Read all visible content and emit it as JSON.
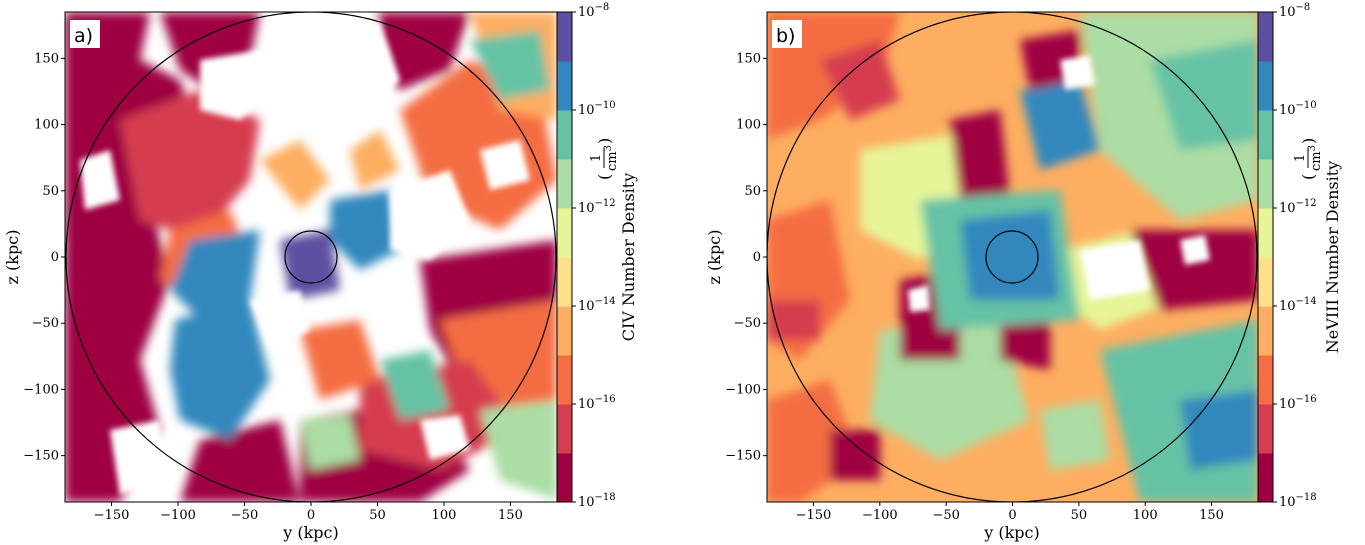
{
  "chart_data": [
    {
      "type": "heatmap",
      "panel_label": "a)",
      "xlabel": "y (kpc)",
      "ylabel": "z (kpc)",
      "xlim": [
        -185,
        185
      ],
      "ylim": [
        -185,
        185
      ],
      "xticks": [
        -150,
        -100,
        -50,
        0,
        50,
        100,
        150
      ],
      "yticks": [
        -150,
        -100,
        -50,
        0,
        50,
        100,
        150
      ],
      "colorbar": {
        "label": "CIV Number Density",
        "unit_numerator": "1",
        "unit_denominator": "cm",
        "unit_denominator_exp": "3",
        "scale": "log",
        "range": [
          1e-18,
          1e-08
        ],
        "tick_base": "10",
        "tick_exponents": [
          "−8",
          "−10",
          "−12",
          "−14",
          "−16",
          "−18"
        ],
        "colors": [
          "#9e0142",
          "#d53e4f",
          "#f46d43",
          "#fdae61",
          "#fee08b",
          "#e6f598",
          "#abdda4",
          "#66c2a5",
          "#3288bd",
          "#5e4fa2"
        ]
      },
      "annotations": [
        {
          "shape": "circle",
          "center": [
            0,
            0
          ],
          "radius": 185
        },
        {
          "shape": "circle",
          "center": [
            0,
            0
          ],
          "radius": 20
        }
      ]
    },
    {
      "type": "heatmap",
      "panel_label": "b)",
      "xlabel": "y (kpc)",
      "ylabel": "z (kpc)",
      "xlim": [
        -185,
        185
      ],
      "ylim": [
        -185,
        185
      ],
      "xticks": [
        -150,
        -100,
        -50,
        0,
        50,
        100,
        150
      ],
      "yticks": [
        -150,
        -100,
        -50,
        0,
        50,
        100,
        150
      ],
      "colorbar": {
        "label": "NeVIII Number Density",
        "unit_numerator": "1",
        "unit_denominator": "cm",
        "unit_denominator_exp": "3",
        "scale": "log",
        "range": [
          1e-18,
          1e-08
        ],
        "tick_base": "10",
        "tick_exponents": [
          "−8",
          "−10",
          "−12",
          "−14",
          "−16",
          "−18"
        ],
        "colors": [
          "#9e0142",
          "#d53e4f",
          "#f46d43",
          "#fdae61",
          "#fee08b",
          "#e6f598",
          "#abdda4",
          "#66c2a5",
          "#3288bd",
          "#5e4fa2"
        ]
      },
      "annotations": [
        {
          "shape": "circle",
          "center": [
            0,
            0
          ],
          "radius": 185
        },
        {
          "shape": "circle",
          "center": [
            0,
            0
          ],
          "radius": 20
        }
      ]
    }
  ]
}
